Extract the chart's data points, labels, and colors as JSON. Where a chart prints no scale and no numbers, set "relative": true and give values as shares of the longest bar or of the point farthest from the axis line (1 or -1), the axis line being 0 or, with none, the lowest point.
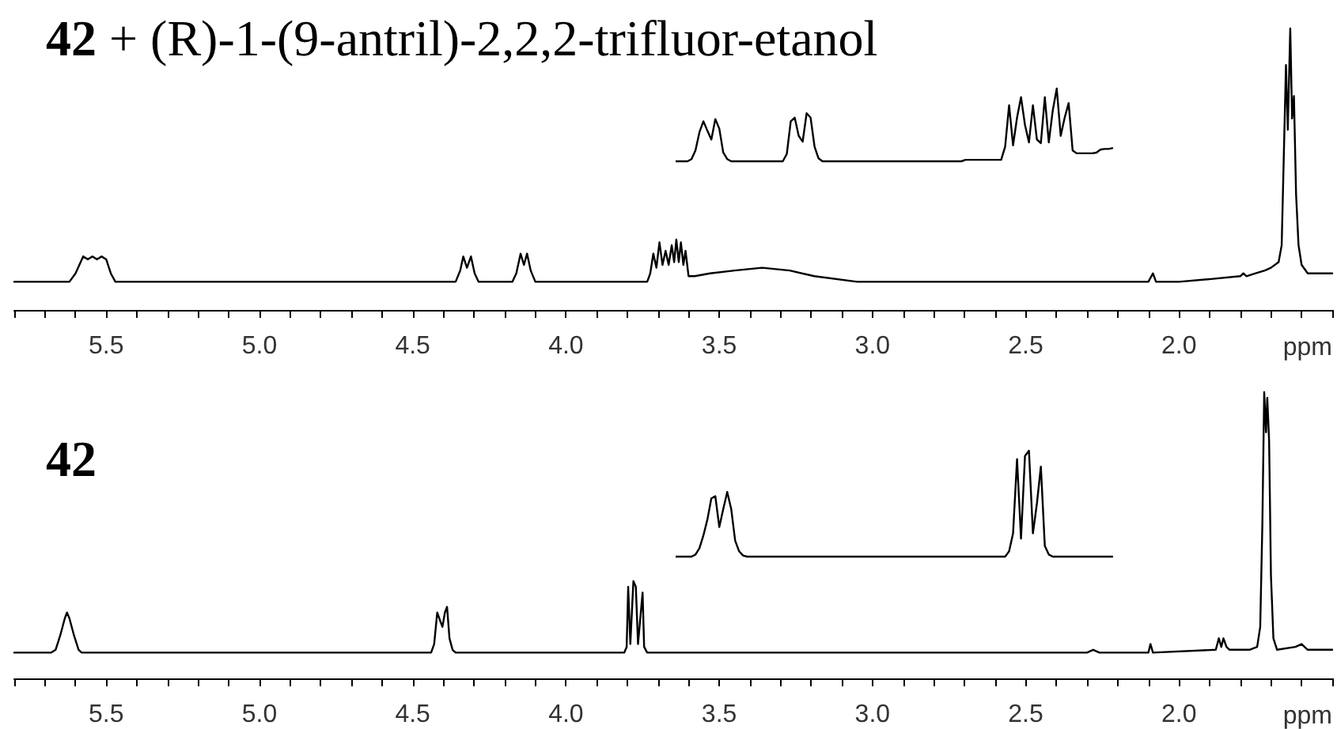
{
  "chart_data": [
    {
      "type": "line",
      "title": "42 + (R)-1-(9-antril)-2,2,2-trifluor-etanol",
      "xlabel": "ppm",
      "relative": true,
      "color": "#000000",
      "x": [
        5.8,
        5.62,
        5.6,
        5.575,
        5.56,
        5.545,
        5.53,
        5.515,
        5.5,
        5.485,
        5.47,
        4.36,
        4.345,
        4.335,
        4.323,
        4.31,
        4.298,
        4.285,
        4.175,
        4.162,
        4.148,
        4.137,
        4.127,
        4.115,
        4.1,
        3.735,
        3.725,
        3.715,
        3.705,
        3.695,
        3.685,
        3.675,
        3.665,
        3.655,
        3.647,
        3.64,
        3.632,
        3.625,
        3.617,
        3.61,
        3.6,
        3.58,
        3.53,
        3.45,
        3.36,
        3.27,
        3.19,
        3.05,
        2.95,
        2.1,
        2.085,
        2.075,
        2.0,
        1.895,
        1.8,
        1.79,
        1.78,
        1.75,
        1.72,
        1.7,
        1.675,
        1.665,
        1.658,
        1.651,
        1.645,
        1.637,
        1.631,
        1.625,
        1.618,
        1.61,
        1.6,
        1.58,
        1.5
      ],
      "values": [
        0.1,
        0.1,
        0.13,
        0.19,
        0.18,
        0.19,
        0.18,
        0.19,
        0.18,
        0.13,
        0.1,
        0.1,
        0.14,
        0.19,
        0.15,
        0.19,
        0.13,
        0.1,
        0.1,
        0.13,
        0.2,
        0.16,
        0.2,
        0.14,
        0.1,
        0.1,
        0.13,
        0.2,
        0.15,
        0.24,
        0.16,
        0.21,
        0.16,
        0.23,
        0.17,
        0.25,
        0.17,
        0.24,
        0.16,
        0.21,
        0.12,
        0.12,
        0.13,
        0.14,
        0.15,
        0.14,
        0.12,
        0.1,
        0.1,
        0.1,
        0.13,
        0.1,
        0.1,
        0.11,
        0.12,
        0.13,
        0.12,
        0.13,
        0.14,
        0.15,
        0.17,
        0.23,
        0.55,
        0.87,
        0.64,
        1,
        0.68,
        0.76,
        0.41,
        0.23,
        0.16,
        0.13,
        0.13
      ],
      "xlim": [
        5.8,
        1.5
      ],
      "xticks": [
        {
          "value": 5.8,
          "label": null
        },
        {
          "value": 5.7,
          "label": null
        },
        {
          "value": 5.6,
          "label": null
        },
        5.5,
        {
          "value": 5.4,
          "label": null
        },
        {
          "value": 5.3,
          "label": null
        },
        {
          "value": 5.2,
          "label": null
        },
        {
          "value": 5.1,
          "label": null
        },
        {
          "value": 5,
          "label": "5.0"
        },
        {
          "value": 4.9,
          "label": null
        },
        {
          "value": 4.8,
          "label": null
        },
        {
          "value": 4.7,
          "label": null
        },
        {
          "value": 4.6,
          "label": null
        },
        4.5,
        {
          "value": 4.4,
          "label": null
        },
        {
          "value": 4.3,
          "label": null
        },
        {
          "value": 4.2,
          "label": null
        },
        {
          "value": 4.1,
          "label": null
        },
        {
          "value": 4,
          "label": "4.0"
        },
        {
          "value": 3.9,
          "label": null
        },
        {
          "value": 3.8,
          "label": null
        },
        {
          "value": 3.7,
          "label": null
        },
        {
          "value": 3.6,
          "label": null
        },
        3.5,
        {
          "value": 3.4,
          "label": null
        },
        {
          "value": 3.3,
          "label": null
        },
        {
          "value": 3.2,
          "label": null
        },
        {
          "value": 3.1,
          "label": null
        },
        {
          "value": 3,
          "label": "3.0"
        },
        {
          "value": 2.9,
          "label": null
        },
        {
          "value": 2.8,
          "label": null
        },
        {
          "value": 2.7,
          "label": null
        },
        {
          "value": 2.6,
          "label": null
        },
        2.5,
        {
          "value": 2.4,
          "label": null
        },
        {
          "value": 2.3,
          "label": null
        },
        {
          "value": 2.2,
          "label": null
        },
        {
          "value": 2.1,
          "label": null
        },
        {
          "value": 2,
          "label": "2.0"
        },
        {
          "value": 1.9,
          "label": null
        },
        {
          "value": 1.8,
          "label": null
        },
        {
          "value": 1.7,
          "label": null
        },
        {
          "value": 1.6,
          "label": null
        },
        {
          "value": 1.5,
          "label": null
        }
      ]
    },
    {
      "type": "line",
      "relative": true,
      "color": "#000000",
      "categories": [
        null,
        null,
        null,
        null,
        null,
        null,
        null,
        null,
        null,
        null,
        null,
        null,
        null,
        null,
        null,
        null,
        null,
        null,
        null,
        null,
        null,
        null,
        null,
        null,
        null,
        null,
        null,
        null,
        null,
        null,
        null,
        null,
        null,
        null,
        null,
        null,
        null,
        null,
        null,
        null,
        null,
        null,
        null,
        null,
        null,
        null,
        null,
        null,
        null,
        null,
        null,
        null,
        null,
        null,
        null,
        null,
        null,
        null,
        null,
        null,
        null,
        null,
        null,
        null,
        null,
        null,
        null,
        null,
        null,
        null,
        null,
        null,
        null,
        null,
        null,
        null,
        null,
        null,
        null,
        null,
        null,
        null,
        null,
        null,
        null,
        null,
        null,
        null,
        null,
        null,
        null,
        null,
        null,
        null,
        null,
        null,
        null,
        null,
        null,
        null,
        null,
        null,
        null,
        null,
        null,
        null,
        null,
        null,
        null,
        null,
        null
      ],
      "values": [
        0,
        0,
        0,
        0,
        0.03,
        0.15,
        0.4,
        0.55,
        0.42,
        0.3,
        0.58,
        0.45,
        0.12,
        0.03,
        0,
        0,
        0,
        0,
        0,
        0,
        0,
        0,
        0,
        0,
        0,
        0,
        0,
        0,
        0.1,
        0.55,
        0.6,
        0.35,
        0.27,
        0.66,
        0.6,
        0.2,
        0.04,
        0,
        0,
        0,
        0,
        0,
        0,
        0,
        0,
        0,
        0,
        0,
        0,
        0,
        0,
        0,
        0,
        0,
        0,
        0,
        0,
        0,
        0,
        0,
        0,
        0,
        0,
        0,
        0,
        0,
        0,
        0,
        0,
        0,
        0,
        0,
        0,
        0.02,
        0.02,
        0.02,
        0.02,
        0.02,
        0.02,
        0.02,
        0.02,
        0.02,
        0.02,
        0.2,
        0.77,
        0.22,
        0.6,
        0.88,
        0.5,
        0.26,
        0.77,
        0.3,
        0.25,
        0.88,
        0.26,
        0.7,
        1,
        0.35,
        0.6,
        0.8,
        0.15,
        0.11,
        0.11,
        0.11,
        0.11,
        0.11,
        0.12,
        0.16,
        0.17,
        0.17,
        0.18
      ]
    },
    {
      "type": "line",
      "title": "42",
      "xlabel": "ppm",
      "relative": true,
      "color": "#000000",
      "x": [
        5.8,
        5.68,
        5.665,
        5.65,
        5.635,
        5.628,
        5.62,
        5.605,
        5.59,
        5.58,
        4.44,
        4.43,
        4.42,
        4.41,
        4.403,
        4.395,
        4.388,
        4.38,
        4.37,
        4.36,
        3.81,
        3.802,
        3.797,
        3.79,
        3.78,
        3.772,
        3.765,
        3.75,
        3.745,
        3.735,
        2.3,
        2.28,
        2.26,
        2.1,
        2.093,
        2.085,
        1.88,
        1.87,
        1.862,
        1.855,
        1.845,
        1.835,
        1.77,
        1.745,
        1.735,
        1.728,
        1.722,
        1.716,
        1.712,
        1.706,
        1.7,
        1.692,
        1.68,
        1.62,
        1.6,
        1.58,
        1.5
      ],
      "values": [
        0.09,
        0.09,
        0.1,
        0.15,
        0.21,
        0.23,
        0.21,
        0.15,
        0.1,
        0.09,
        0.09,
        0.12,
        0.23,
        0.2,
        0.18,
        0.23,
        0.25,
        0.14,
        0.1,
        0.09,
        0.09,
        0.11,
        0.32,
        0.12,
        0.34,
        0.32,
        0.12,
        0.3,
        0.11,
        0.09,
        0.09,
        0.1,
        0.09,
        0.09,
        0.12,
        0.09,
        0.1,
        0.14,
        0.11,
        0.14,
        0.11,
        0.1,
        0.1,
        0.11,
        0.18,
        0.54,
        1,
        0.86,
        0.98,
        0.83,
        0.36,
        0.14,
        0.1,
        0.11,
        0.12,
        0.1,
        0.1
      ],
      "xlim": [
        5.8,
        1.5
      ],
      "xticks": [
        {
          "value": 5.8,
          "label": null
        },
        {
          "value": 5.7,
          "label": null
        },
        {
          "value": 5.6,
          "label": null
        },
        5.5,
        {
          "value": 5.4,
          "label": null
        },
        {
          "value": 5.3,
          "label": null
        },
        {
          "value": 5.2,
          "label": null
        },
        {
          "value": 5.1,
          "label": null
        },
        {
          "value": 5,
          "label": "5.0"
        },
        {
          "value": 4.9,
          "label": null
        },
        {
          "value": 4.8,
          "label": null
        },
        {
          "value": 4.7,
          "label": null
        },
        {
          "value": 4.6,
          "label": null
        },
        4.5,
        {
          "value": 4.4,
          "label": null
        },
        {
          "value": 4.3,
          "label": null
        },
        {
          "value": 4.2,
          "label": null
        },
        {
          "value": 4.1,
          "label": null
        },
        {
          "value": 4,
          "label": "4.0"
        },
        {
          "value": 3.9,
          "label": null
        },
        {
          "value": 3.8,
          "label": null
        },
        {
          "value": 3.7,
          "label": null
        },
        {
          "value": 3.6,
          "label": null
        },
        3.5,
        {
          "value": 3.4,
          "label": null
        },
        {
          "value": 3.3,
          "label": null
        },
        {
          "value": 3.2,
          "label": null
        },
        {
          "value": 3.1,
          "label": null
        },
        {
          "value": 3,
          "label": "3.0"
        },
        {
          "value": 2.9,
          "label": null
        },
        {
          "value": 2.8,
          "label": null
        },
        {
          "value": 2.7,
          "label": null
        },
        {
          "value": 2.6,
          "label": null
        },
        2.5,
        {
          "value": 2.4,
          "label": null
        },
        {
          "value": 2.3,
          "label": null
        },
        {
          "value": 2.2,
          "label": null
        },
        {
          "value": 2.1,
          "label": null
        },
        {
          "value": 2,
          "label": "2.0"
        },
        {
          "value": 1.9,
          "label": null
        },
        {
          "value": 1.8,
          "label": null
        },
        {
          "value": 1.7,
          "label": null
        },
        {
          "value": 1.6,
          "label": null
        },
        {
          "value": 1.5,
          "label": null
        }
      ]
    },
    {
      "type": "line",
      "relative": true,
      "color": "#000000",
      "categories": [
        null,
        null,
        null,
        null,
        null,
        null,
        null,
        null,
        null,
        null,
        null,
        null,
        null,
        null,
        null,
        null,
        null,
        null,
        null,
        null,
        null,
        null,
        null,
        null,
        null,
        null,
        null,
        null,
        null,
        null,
        null,
        null,
        null,
        null,
        null,
        null,
        null,
        null,
        null,
        null,
        null,
        null,
        null,
        null,
        null,
        null,
        null,
        null,
        null,
        null,
        null,
        null,
        null,
        null,
        null,
        null,
        null,
        null,
        null,
        null,
        null,
        null,
        null,
        null,
        null,
        null,
        null,
        null,
        null,
        null,
        null,
        null,
        null,
        null,
        null,
        null,
        null,
        null,
        null,
        null,
        null,
        null,
        null,
        null,
        null,
        null,
        null,
        null,
        null,
        null,
        null,
        null,
        null,
        null,
        null,
        null,
        null,
        null,
        null,
        null,
        null,
        null,
        null,
        null,
        null,
        null,
        null,
        null,
        null,
        null,
        null
      ],
      "values": [
        0,
        0,
        0,
        0,
        0,
        0.02,
        0.08,
        0.2,
        0.35,
        0.55,
        0.57,
        0.28,
        0.45,
        0.61,
        0.45,
        0.15,
        0.05,
        0.01,
        0,
        0,
        0,
        0,
        0,
        0,
        0,
        0,
        0,
        0,
        0,
        0,
        0,
        0,
        0,
        0,
        0,
        0,
        0,
        0,
        0,
        0,
        0,
        0,
        0,
        0,
        0,
        0,
        0,
        0,
        0,
        0,
        0,
        0,
        0,
        0,
        0,
        0,
        0,
        0,
        0,
        0,
        0,
        0,
        0,
        0,
        0,
        0,
        0,
        0,
        0,
        0,
        0,
        0,
        0,
        0,
        0,
        0,
        0,
        0,
        0,
        0,
        0,
        0,
        0,
        0,
        0.05,
        0.22,
        0.92,
        0.17,
        0.95,
        1,
        0.22,
        0.5,
        0.85,
        0.1,
        0.02,
        0,
        0,
        0,
        0,
        0,
        0,
        0,
        0,
        0,
        0,
        0,
        0,
        0,
        0,
        0,
        0
      ]
    }
  ]
}
